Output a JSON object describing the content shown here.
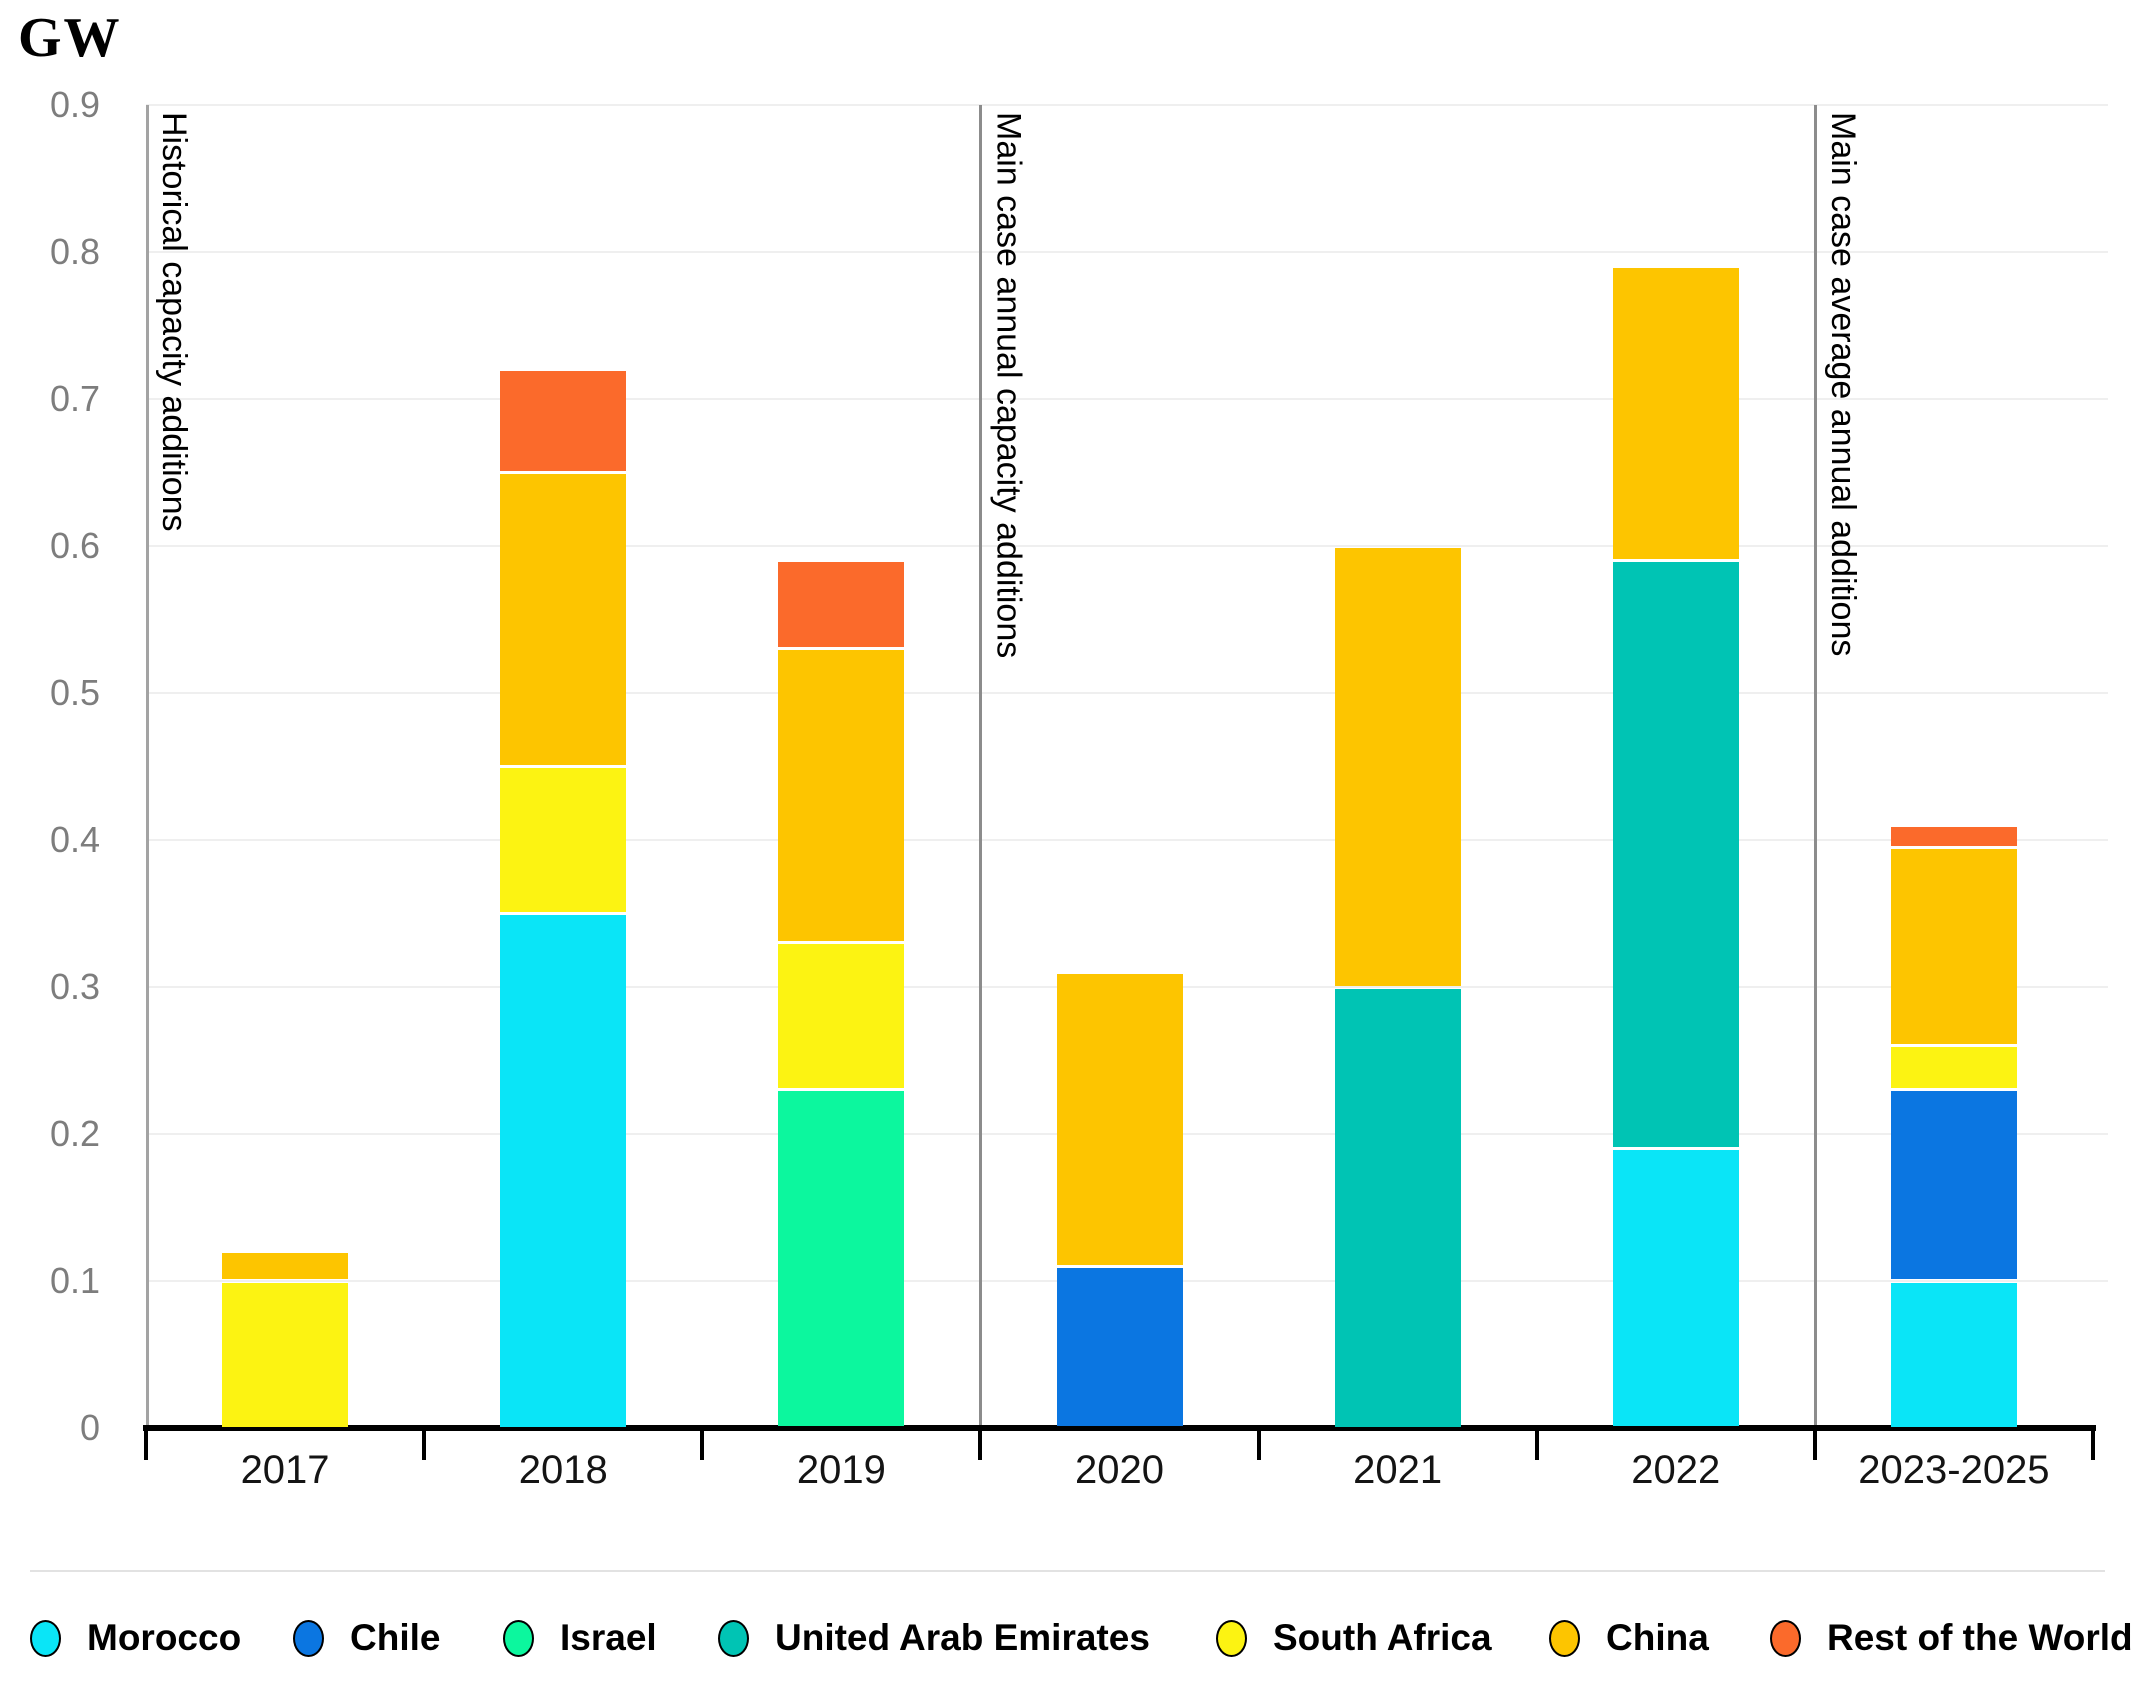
{
  "title": "GW",
  "chart_data": {
    "type": "bar",
    "stacked": true,
    "unit": "GW",
    "title": "GW",
    "categories": [
      "2017",
      "2018",
      "2019",
      "2020",
      "2021",
      "2022",
      "2023-2025"
    ],
    "series": [
      {
        "name": "Morocco",
        "color": "#0AE5F7",
        "values": [
          0,
          0.35,
          0,
          0,
          0,
          0.19,
          0.1
        ]
      },
      {
        "name": "Chile",
        "color": "#0B76E1",
        "values": [
          0,
          0,
          0,
          0.11,
          0,
          0,
          0.13
        ]
      },
      {
        "name": "Israel",
        "color": "#0CF79E",
        "values": [
          0,
          0,
          0.23,
          0,
          0,
          0,
          0
        ]
      },
      {
        "name": "United Arab Emirates",
        "color": "#00C4B4",
        "values": [
          0,
          0,
          0,
          0,
          0.3,
          0.4,
          0
        ]
      },
      {
        "name": "South Africa",
        "color": "#FCF312",
        "values": [
          0.1,
          0.1,
          0.1,
          0,
          0,
          0,
          0.03
        ]
      },
      {
        "name": "China",
        "color": "#FDC500",
        "values": [
          0.02,
          0.2,
          0.2,
          0.2,
          0.3,
          0.2,
          0.135
        ]
      },
      {
        "name": "Rest of the World",
        "color": "#FB6A2B",
        "values": [
          0,
          0.07,
          0.06,
          0,
          0,
          0,
          0.015
        ]
      }
    ],
    "yticks": [
      "0",
      "0.1",
      "0.2",
      "0.3",
      "0.4",
      "0.5",
      "0.6",
      "0.7",
      "0.8",
      "0.9"
    ],
    "ylim": [
      0,
      0.9
    ],
    "grid": "horizontal",
    "legend_position": "bottom",
    "sections": [
      {
        "label": "Historical capacity additions",
        "start_category": "2017"
      },
      {
        "label": "Main case annual capacity additions",
        "start_category": "2020"
      },
      {
        "label": "Main case average annual additions",
        "start_category": "2023-2025"
      }
    ]
  }
}
